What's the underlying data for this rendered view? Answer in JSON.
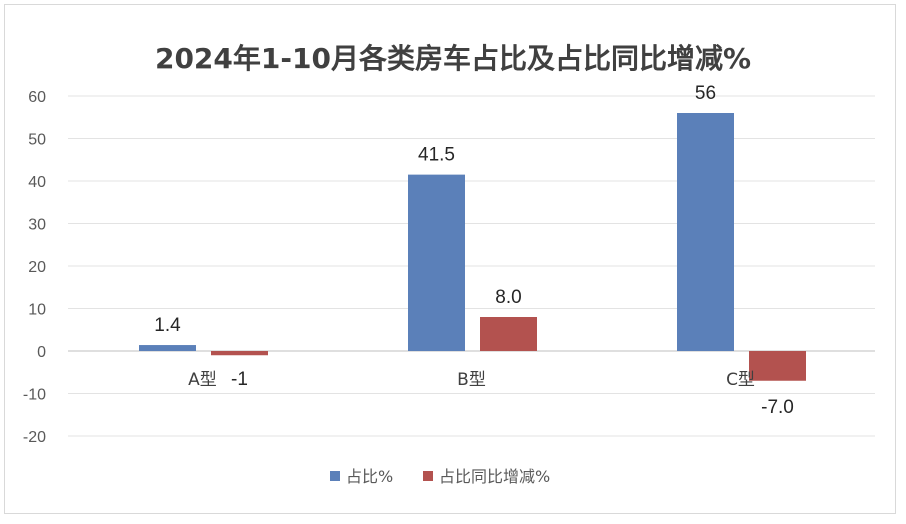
{
  "chart_data": {
    "type": "bar",
    "title": "2024年1-10月各类房车占比及占比同比增减%",
    "categories": [
      "A型",
      "B型",
      "C型"
    ],
    "series": [
      {
        "name": "占比%",
        "values": [
          1.4,
          41.5,
          56
        ],
        "labels": [
          "1.4",
          "41.5",
          "56"
        ],
        "color": "#5b80b9"
      },
      {
        "name": "占比同比增减%",
        "values": [
          -1,
          8.0,
          -7.0
        ],
        "labels": [
          "-1",
          "8.0",
          "-7.0"
        ],
        "color": "#b3524f"
      }
    ],
    "ylim": [
      -20,
      60
    ],
    "yticks": [
      "-20",
      "-10",
      "0",
      "10",
      "20",
      "30",
      "40",
      "50",
      "60"
    ],
    "grid": true,
    "legend_position": "bottom"
  }
}
